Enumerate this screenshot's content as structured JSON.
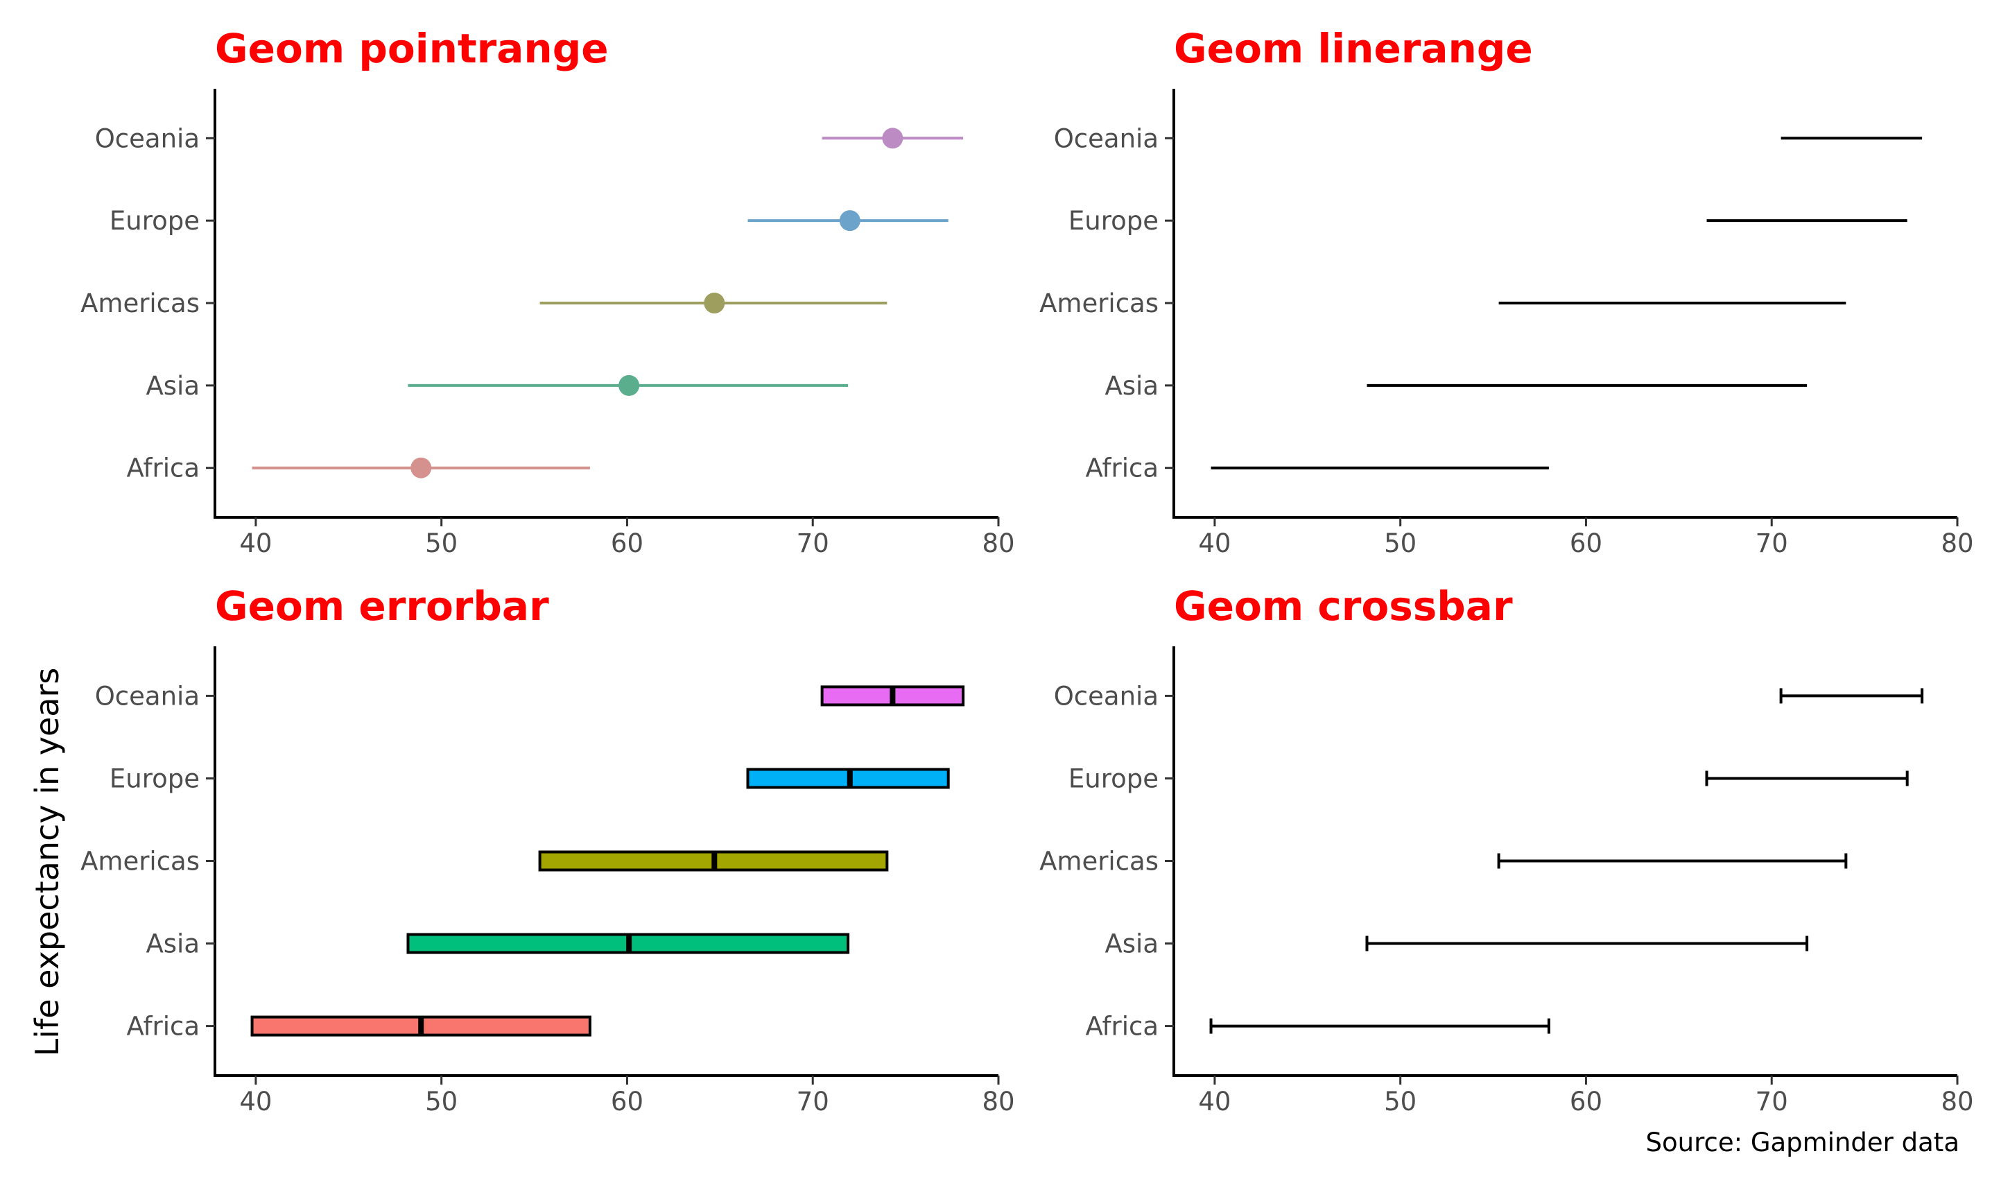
{
  "ylabel": "Life expectancy in years",
  "caption": "Source: Gapminder data",
  "title_color": "#FF0000",
  "chart_data": [
    {
      "type": "pointrange",
      "title": "Geom pointrange",
      "categories": [
        "Africa",
        "Asia",
        "Americas",
        "Europe",
        "Oceania"
      ],
      "mean": [
        48.9,
        60.1,
        64.7,
        72.0,
        74.3
      ],
      "min": [
        39.8,
        48.2,
        55.3,
        66.5,
        70.5
      ],
      "max": [
        58.0,
        71.9,
        74.0,
        77.3,
        78.1
      ],
      "colors": [
        "#D4918D",
        "#5AAE8E",
        "#9E9E5E",
        "#6BA3CB",
        "#BC8BC4"
      ],
      "xlim": [
        37.8,
        80
      ],
      "xticks": [
        40,
        50,
        60,
        70,
        80
      ]
    },
    {
      "type": "linerange",
      "title": "Geom linerange",
      "categories": [
        "Africa",
        "Asia",
        "Americas",
        "Europe",
        "Oceania"
      ],
      "min": [
        39.8,
        48.2,
        55.3,
        66.5,
        70.5
      ],
      "max": [
        58.0,
        71.9,
        74.0,
        77.3,
        78.1
      ],
      "colors": [
        "#000000",
        "#000000",
        "#000000",
        "#000000",
        "#000000"
      ],
      "xlim": [
        37.8,
        80
      ],
      "xticks": [
        40,
        50,
        60,
        70,
        80
      ]
    },
    {
      "type": "crossbar",
      "title": "Geom errorbar",
      "categories": [
        "Africa",
        "Asia",
        "Americas",
        "Europe",
        "Oceania"
      ],
      "mean": [
        48.9,
        60.1,
        64.7,
        72.0,
        74.3
      ],
      "min": [
        39.8,
        48.2,
        55.3,
        66.5,
        70.5
      ],
      "max": [
        58.0,
        71.9,
        74.0,
        77.3,
        78.1
      ],
      "colors": [
        "#F8766D",
        "#00BF7D",
        "#A3A500",
        "#00B0F6",
        "#E76BF3"
      ],
      "xlim": [
        37.8,
        80
      ],
      "xticks": [
        40,
        50,
        60,
        70,
        80
      ]
    },
    {
      "type": "errorbar",
      "title": "Geom crossbar",
      "categories": [
        "Africa",
        "Asia",
        "Americas",
        "Europe",
        "Oceania"
      ],
      "min": [
        39.8,
        48.2,
        55.3,
        66.5,
        70.5
      ],
      "max": [
        58.0,
        71.9,
        74.0,
        77.3,
        78.1
      ],
      "colors": [
        "#000000",
        "#000000",
        "#000000",
        "#000000",
        "#000000"
      ],
      "xlim": [
        37.8,
        80
      ],
      "xticks": [
        40,
        50,
        60,
        70,
        80
      ]
    }
  ]
}
